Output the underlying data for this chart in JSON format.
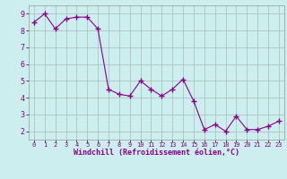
{
  "x": [
    0,
    1,
    2,
    3,
    4,
    5,
    6,
    7,
    8,
    9,
    10,
    11,
    12,
    13,
    14,
    15,
    16,
    17,
    18,
    19,
    20,
    21,
    22,
    23
  ],
  "y": [
    8.5,
    9.0,
    8.1,
    8.7,
    8.8,
    8.8,
    8.1,
    4.5,
    4.2,
    4.1,
    5.0,
    4.5,
    4.1,
    4.5,
    5.1,
    3.8,
    2.1,
    2.4,
    2.0,
    2.9,
    2.1,
    2.1,
    2.3,
    2.6
  ],
  "line_color": "#880088",
  "marker": "+",
  "marker_size": 4,
  "bg_color": "#cceeee",
  "grid_color": "#aabbbb",
  "xlabel": "Windchill (Refroidissement éolien,°C)",
  "xlim": [
    -0.5,
    23.5
  ],
  "ylim": [
    1.5,
    9.5
  ],
  "yticks": [
    2,
    3,
    4,
    5,
    6,
    7,
    8,
    9
  ],
  "xticks": [
    0,
    1,
    2,
    3,
    4,
    5,
    6,
    7,
    8,
    9,
    10,
    11,
    12,
    13,
    14,
    15,
    16,
    17,
    18,
    19,
    20,
    21,
    22,
    23
  ]
}
